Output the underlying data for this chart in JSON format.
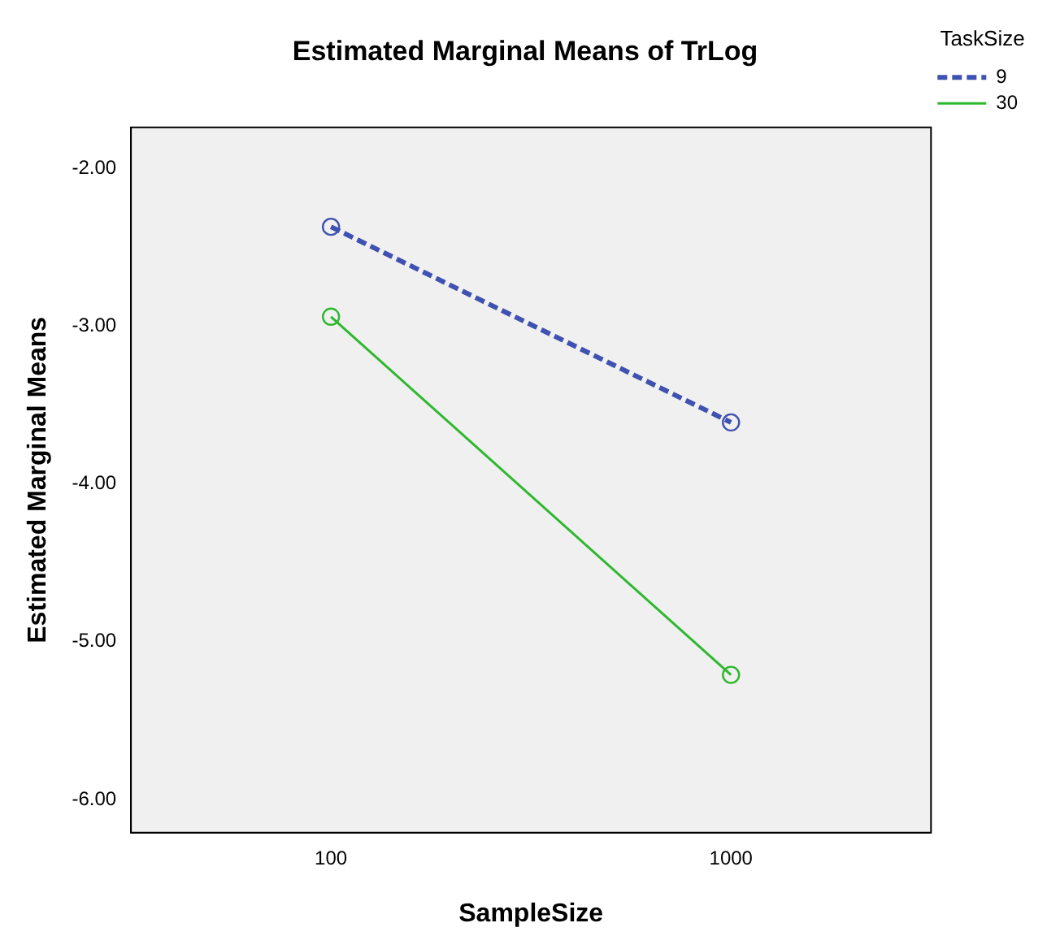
{
  "chart_data": {
    "type": "line",
    "title": "Estimated Marginal Means of TrLog",
    "xlabel": "SampleSize",
    "ylabel": "Estimated Marginal Means",
    "legend_title": "TaskSize",
    "categories": [
      "100",
      "1000"
    ],
    "series": [
      {
        "name": "9",
        "color": "#3f51b1",
        "values": [
          -2.37,
          -3.61
        ],
        "line_style": "dashed"
      },
      {
        "name": "30",
        "color": "#2eb82e",
        "values": [
          -2.94,
          -5.21
        ],
        "line_style": "solid"
      }
    ],
    "ylim": [
      -6.21,
      -1.74
    ],
    "yticks": [
      {
        "value": -2,
        "label": "-2.00"
      },
      {
        "value": -3,
        "label": "-3.00"
      },
      {
        "value": -4,
        "label": "-4.00"
      },
      {
        "value": -5,
        "label": "-5.00"
      },
      {
        "value": -6,
        "label": "-6.00"
      }
    ],
    "grid": false,
    "legend": "top right",
    "marker": "circle"
  }
}
